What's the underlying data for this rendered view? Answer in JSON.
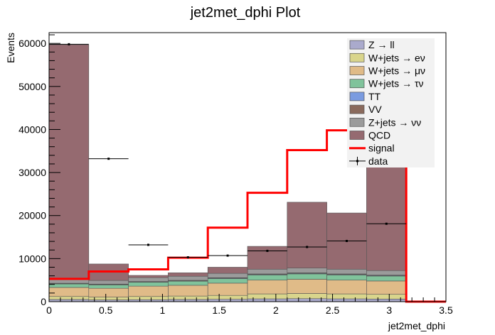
{
  "chart_data": {
    "type": "bar",
    "title": "jet2met_dphi Plot",
    "xlabel": "jet2met_dphi",
    "ylabel": "Events",
    "xlim": [
      0,
      3.5
    ],
    "ylim": [
      0,
      62500
    ],
    "x_ticks": [
      "0",
      "0.5",
      "1",
      "1.5",
      "2",
      "2.5",
      "3",
      "3.5"
    ],
    "y_ticks": [
      "0",
      "10000",
      "20000",
      "30000",
      "40000",
      "50000",
      "60000"
    ],
    "bin_edges": [
      0,
      0.35,
      0.7,
      1.05,
      1.4,
      1.75,
      2.1,
      2.45,
      2.8,
      3.15
    ],
    "stacked": true,
    "series": [
      {
        "name": "Z → ll",
        "color": "#aaaacc",
        "values": [
          500,
          400,
          450,
          500,
          550,
          650,
          700,
          650,
          600
        ]
      },
      {
        "name": "W+jets → eν",
        "color": "#d9d58c",
        "values": [
          700,
          650,
          750,
          800,
          900,
          1150,
          1200,
          1150,
          1100
        ]
      },
      {
        "name": "W+jets → μν",
        "color": "#e0bb88",
        "values": [
          2100,
          2050,
          2400,
          2500,
          2850,
          3200,
          3300,
          3200,
          3100
        ]
      },
      {
        "name": "W+jets → τν",
        "color": "#80c39b",
        "values": [
          800,
          800,
          900,
          950,
          1050,
          1200,
          1250,
          1200,
          1150
        ]
      },
      {
        "name": "TT",
        "color": "#7a9be0",
        "values": [
          100,
          100,
          100,
          110,
          120,
          130,
          140,
          130,
          120
        ]
      },
      {
        "name": "VV",
        "color": "#8a6a5c",
        "values": [
          80,
          80,
          80,
          90,
          100,
          110,
          110,
          110,
          100
        ]
      },
      {
        "name": "Z+jets → νν",
        "color": "#9b9b9b",
        "values": [
          800,
          850,
          900,
          950,
          1000,
          1100,
          1100,
          1100,
          1050
        ]
      },
      {
        "name": "QCD",
        "color": "#956a70",
        "values": [
          54620,
          3820,
          520,
          800,
          1430,
          5310,
          15300,
          13060,
          24080
        ]
      }
    ],
    "signal": {
      "name": "signal",
      "color": "#ff0000",
      "values": [
        5300,
        7000,
        7500,
        10200,
        17200,
        25300,
        35200,
        39800,
        43500
      ]
    },
    "data": {
      "name": "data",
      "x": [
        0.175,
        0.525,
        0.875,
        1.225,
        1.575,
        1.925,
        2.275,
        2.625,
        2.975
      ],
      "values": [
        59800,
        33200,
        13200,
        10300,
        10700,
        11800,
        12700,
        14100,
        18100
      ]
    }
  }
}
